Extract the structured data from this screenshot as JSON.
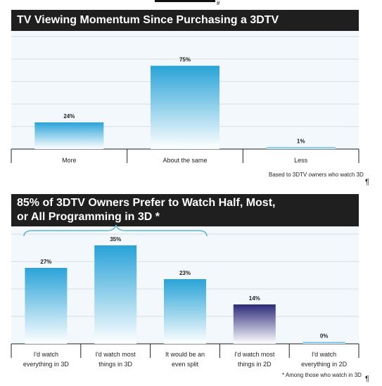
{
  "chart_data": [
    {
      "type": "bar",
      "title": "TV Viewing Momentum Since Purchasing a 3DTV",
      "categories": [
        "More",
        "About the same",
        "Less"
      ],
      "values": [
        24,
        75,
        1
      ],
      "data_labels": [
        "24%",
        "75%",
        "1%"
      ],
      "ylim": [
        0,
        100
      ],
      "grid": true,
      "note": "Based to 3DTV owners who watch 3D"
    },
    {
      "type": "bar",
      "title": "85% of 3DTV Owners Prefer to Watch Half, Most,\nor All Programming in 3D *",
      "categories": [
        "I'd watch\neverything in 3D",
        "I'd watch most\nthings in 3D",
        "It would be an\neven split",
        "I'd watch most\nthings in 2D",
        "I'd watch\neverything in 2D"
      ],
      "values": [
        27,
        35,
        23,
        14,
        0
      ],
      "data_labels": [
        "27%",
        "35%",
        "23%",
        "14%",
        "0%"
      ],
      "ylim": [
        0,
        40
      ],
      "grid": true,
      "note": "* Among those who watch in 3D"
    }
  ],
  "colors": {
    "bar_blue_top": "#29a3d8",
    "bar_blue_bottom": "#ffffff",
    "bar_purple_top": "#2b2a7a",
    "bar_purple_bottom": "#ffffff",
    "title_bg": "#1f1f1f",
    "plot_bg": "#f2f8fc",
    "brace": "#5bb3d9"
  },
  "pilcrow": "¶",
  "top_mark": "#"
}
